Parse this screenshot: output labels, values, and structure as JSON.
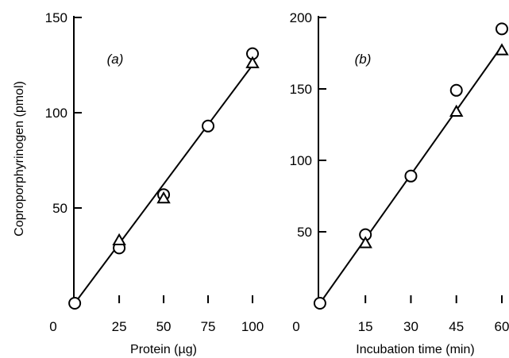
{
  "chart_data": [
    {
      "type": "scatter",
      "panel": "(a)",
      "xlabel": "Protein (µg)",
      "ylabel": "Coproporphyrinogen (pmol)",
      "xlim": [
        -0.5,
        100
      ],
      "ylim": [
        0,
        150
      ],
      "x_origin_label": "0",
      "x_ticks": [
        25,
        50,
        75,
        100
      ],
      "y_ticks": [
        50,
        100,
        150
      ],
      "series": [
        {
          "marker": "circle",
          "points": [
            [
              0,
              0
            ],
            [
              25,
              29
            ],
            [
              50,
              57
            ],
            [
              75,
              93
            ],
            [
              100,
              131
            ]
          ]
        },
        {
          "marker": "triangle",
          "points": [
            [
              25,
              33
            ],
            [
              50,
              55
            ],
            [
              100,
              126
            ]
          ]
        }
      ],
      "fit_line": [
        [
          0,
          0
        ],
        [
          100,
          125
        ]
      ]
    },
    {
      "type": "scatter",
      "panel": "(b)",
      "xlabel": "Incubation time (min)",
      "ylabel": "",
      "xlim": [
        -0.5,
        60
      ],
      "ylim": [
        0,
        200
      ],
      "x_origin_label": "0",
      "x_ticks": [
        15,
        30,
        45,
        60
      ],
      "y_ticks": [
        50,
        100,
        150,
        200
      ],
      "series": [
        {
          "marker": "circle",
          "points": [
            [
              0,
              0
            ],
            [
              15,
              48
            ],
            [
              30,
              89
            ],
            [
              45,
              149
            ],
            [
              60,
              192
            ]
          ]
        },
        {
          "marker": "triangle",
          "points": [
            [
              15,
              42
            ],
            [
              45,
              134
            ],
            [
              60,
              177
            ]
          ]
        }
      ],
      "fit_line": [
        [
          0,
          0
        ],
        [
          60,
          180
        ]
      ]
    }
  ]
}
